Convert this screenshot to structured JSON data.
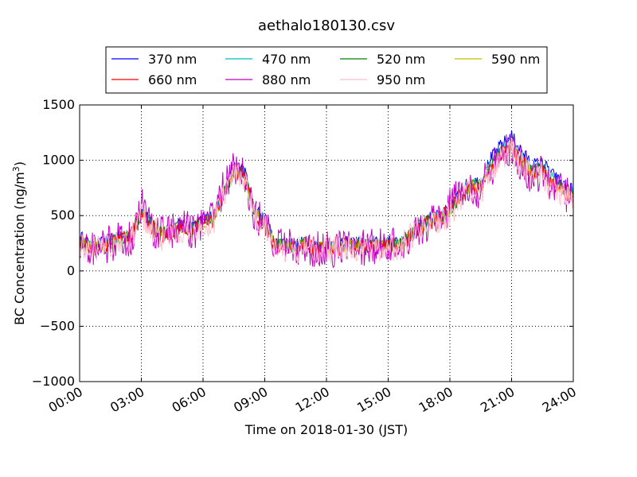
{
  "chart_data": {
    "type": "line",
    "title": "aethalo180130.csv",
    "xlabel": "Time on 2018-01-30 (JST)",
    "ylabel_main": "BC Concentration (ng/m",
    "ylabel_sup": "3",
    "ylabel_close": ")",
    "xlim": [
      0,
      24
    ],
    "ylim": [
      -1000,
      1500
    ],
    "x_ticks": [
      0,
      3,
      6,
      9,
      12,
      15,
      18,
      21,
      24
    ],
    "x_tick_labels": [
      "00:00",
      "03:00",
      "06:00",
      "09:00",
      "12:00",
      "15:00",
      "18:00",
      "21:00",
      "24:00"
    ],
    "y_ticks": [
      -1000,
      -500,
      0,
      500,
      1000,
      1500
    ],
    "y_tick_labels": [
      "−1000",
      "−500",
      "0",
      "500",
      "1000",
      "1500"
    ],
    "grid": true,
    "legend_position": "top",
    "x_hours": [
      0,
      0.5,
      1,
      1.5,
      2,
      2.5,
      3,
      3.5,
      4,
      4.5,
      5,
      5.5,
      6,
      6.5,
      7,
      7.5,
      8,
      8.5,
      9,
      9.5,
      10,
      10.5,
      11,
      11.5,
      12,
      12.5,
      13,
      13.5,
      14,
      14.5,
      15,
      15.5,
      16,
      16.5,
      17,
      17.5,
      18,
      18.5,
      19,
      19.5,
      20,
      20.5,
      21,
      21.5,
      22,
      22.5,
      23,
      23.5,
      24
    ],
    "series": [
      {
        "name": "370 nm",
        "color": "#0000ff",
        "values": [
          320,
          230,
          250,
          280,
          310,
          330,
          560,
          430,
          350,
          380,
          430,
          390,
          470,
          500,
          720,
          930,
          920,
          560,
          480,
          250,
          260,
          230,
          270,
          220,
          230,
          230,
          250,
          260,
          240,
          250,
          260,
          250,
          330,
          420,
          480,
          500,
          560,
          710,
          820,
          800,
          1020,
          1140,
          1220,
          1080,
          960,
          980,
          870,
          780,
          730
        ]
      },
      {
        "name": "470 nm",
        "color": "#00bfbf",
        "values": [
          300,
          220,
          240,
          270,
          300,
          320,
          540,
          420,
          340,
          370,
          420,
          380,
          460,
          490,
          700,
          900,
          890,
          540,
          460,
          240,
          250,
          220,
          260,
          210,
          220,
          220,
          240,
          250,
          230,
          240,
          250,
          240,
          320,
          410,
          470,
          490,
          550,
          690,
          790,
          770,
          980,
          1090,
          1160,
          1030,
          920,
          940,
          830,
          750,
          700
        ]
      },
      {
        "name": "520 nm",
        "color": "#008000",
        "values": [
          290,
          215,
          235,
          265,
          295,
          315,
          530,
          410,
          335,
          365,
          410,
          375,
          450,
          480,
          690,
          890,
          880,
          530,
          450,
          235,
          245,
          215,
          255,
          205,
          215,
          215,
          235,
          245,
          225,
          235,
          245,
          235,
          315,
          400,
          460,
          480,
          540,
          680,
          780,
          760,
          960,
          1070,
          1140,
          1010,
          900,
          920,
          810,
          730,
          690
        ]
      },
      {
        "name": "590 nm",
        "color": "#bfbf00",
        "values": [
          280,
          210,
          230,
          260,
          290,
          310,
          520,
          400,
          330,
          360,
          400,
          370,
          440,
          470,
          680,
          880,
          870,
          520,
          440,
          230,
          240,
          210,
          250,
          200,
          210,
          210,
          230,
          240,
          220,
          230,
          240,
          230,
          310,
          390,
          450,
          470,
          530,
          670,
          770,
          750,
          940,
          1050,
          1120,
          990,
          880,
          900,
          790,
          720,
          680
        ]
      },
      {
        "name": "660 nm",
        "color": "#ff0000",
        "values": [
          270,
          205,
          225,
          255,
          285,
          305,
          560,
          395,
          325,
          355,
          395,
          365,
          435,
          465,
          700,
          900,
          880,
          510,
          430,
          225,
          235,
          205,
          245,
          195,
          205,
          205,
          225,
          235,
          215,
          225,
          235,
          225,
          305,
          385,
          445,
          465,
          560,
          680,
          760,
          740,
          930,
          1040,
          1110,
          980,
          870,
          890,
          780,
          710,
          670
        ]
      },
      {
        "name": "880 nm",
        "color": "#bf00bf",
        "values": [
          260,
          200,
          220,
          250,
          280,
          300,
          600,
          390,
          320,
          350,
          390,
          360,
          430,
          460,
          760,
          960,
          900,
          500,
          420,
          220,
          230,
          200,
          240,
          190,
          200,
          200,
          220,
          230,
          210,
          220,
          230,
          220,
          300,
          380,
          440,
          460,
          580,
          700,
          750,
          730,
          920,
          1030,
          1100,
          970,
          860,
          880,
          770,
          700,
          660
        ]
      },
      {
        "name": "950 nm",
        "color": "#ffc0cb",
        "values": [
          240,
          190,
          210,
          240,
          270,
          290,
          520,
          380,
          310,
          340,
          380,
          350,
          420,
          450,
          680,
          880,
          860,
          490,
          410,
          210,
          220,
          190,
          230,
          180,
          190,
          190,
          210,
          220,
          200,
          210,
          220,
          210,
          290,
          370,
          430,
          450,
          520,
          660,
          740,
          720,
          900,
          1010,
          1080,
          950,
          850,
          860,
          760,
          690,
          650
        ]
      }
    ]
  }
}
